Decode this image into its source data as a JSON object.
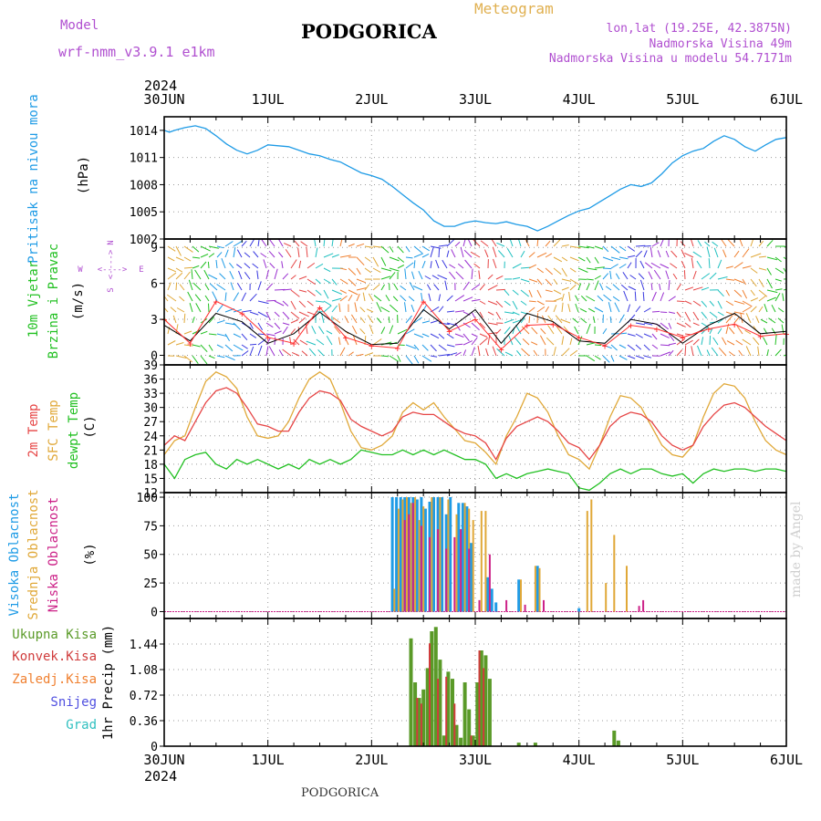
{
  "header": {
    "model_label": "Model",
    "model_name": "wrf-nmm_v3.9.1 e1km",
    "city": "PODGORICA",
    "meteogram_title": "Meteogram",
    "coords": "lon,lat (19.25E, 42.3875N)",
    "elevation": "Nadmorska Visina 49m",
    "elevation_model": "Nadmorska Visina u modelu 54.7171m",
    "footer_city": "PODGORICA",
    "watermark": "made by Angel"
  },
  "colors": {
    "pressure": "#1e9be6",
    "temp2m": "#e64545",
    "tsfc": "#e0a838",
    "dewpoint": "#22c022",
    "high_cloud": "#1e9be6",
    "mid_cloud": "#e0a838",
    "low_cloud": "#cc2288",
    "precip_total": "#5a9a28",
    "precip_conv": "#d03c3c",
    "precip_frz": "#f08030",
    "snow": "#5050e0",
    "graupel": "#30c0c0",
    "wind_speed": "#000000",
    "wind_gust": "#ff3030",
    "compass": "#b04fd0"
  },
  "x_axis": {
    "top_year": "2024",
    "bottom_year": "2024",
    "day_labels": [
      "30JUN",
      "1JUL",
      "2JUL",
      "3JUL",
      "4JUL",
      "5JUL",
      "6JUL"
    ]
  },
  "chart_data": [
    {
      "type": "line",
      "name": "pressure",
      "ylabel_left": "Pritisak na nivou mora",
      "ylabel_unit": "(hPa)",
      "ylim": [
        1002,
        1015.5
      ],
      "yticks": [
        "1014",
        "1011",
        "1008",
        "1005",
        "1002"
      ],
      "series": [
        {
          "x": [
            0,
            0.05,
            0.1,
            0.2,
            0.3,
            0.4,
            0.5,
            0.6,
            0.7,
            0.8,
            0.9,
            1.0,
            1.1,
            1.2,
            1.3,
            1.4,
            1.5,
            1.6,
            1.7,
            1.8,
            1.9,
            2.0,
            2.1,
            2.2,
            2.3,
            2.4,
            2.5,
            2.6,
            2.7,
            2.8,
            2.9,
            3.0,
            3.1,
            3.2,
            3.3,
            3.4,
            3.5,
            3.6,
            3.7,
            3.8,
            3.9,
            4.0,
            4.1,
            4.2,
            4.3,
            4.4,
            4.5,
            4.6,
            4.7,
            4.8,
            4.9,
            5.0,
            5.1,
            5.2,
            5.3,
            5.4,
            5.5,
            5.6,
            5.7,
            5.8,
            5.9,
            6.0
          ],
          "values": [
            1014.0,
            1013.8,
            1014.0,
            1014.3,
            1014.5,
            1014.2,
            1013.4,
            1012.5,
            1011.8,
            1011.4,
            1011.8,
            1012.4,
            1012.3,
            1012.2,
            1011.8,
            1011.4,
            1011.2,
            1010.8,
            1010.5,
            1009.9,
            1009.3,
            1009.0,
            1008.6,
            1007.8,
            1006.9,
            1006.0,
            1005.2,
            1004.0,
            1003.4,
            1003.4,
            1003.8,
            1004.0,
            1003.8,
            1003.7,
            1003.9,
            1003.6,
            1003.4,
            1002.9,
            1003.4,
            1004.0,
            1004.6,
            1005.1,
            1005.4,
            1006.1,
            1006.8,
            1007.5,
            1008.0,
            1007.8,
            1008.2,
            1009.2,
            1010.4,
            1011.2,
            1011.7,
            1012.0,
            1012.8,
            1013.4,
            1013.0,
            1012.2,
            1011.7,
            1012.4,
            1013.0,
            1013.2
          ]
        }
      ]
    },
    {
      "type": "line",
      "name": "wind",
      "ylabel_left_1": "10m Vjetar",
      "ylabel_left_2": "Brzina i Pravac",
      "ylabel_unit": "(m/s)",
      "compass_labels": [
        "W",
        "<---->",
        "E",
        "S",
        "<---->",
        "N"
      ],
      "ylim": [
        -0.8,
        9.7
      ],
      "yticks": [
        "9",
        "6",
        "3",
        "0"
      ],
      "series": [
        {
          "name": "speed",
          "x": [
            0,
            0.25,
            0.5,
            0.75,
            1.0,
            1.25,
            1.5,
            1.75,
            2.0,
            2.25,
            2.5,
            2.75,
            3.0,
            3.25,
            3.5,
            3.75,
            4.0,
            4.25,
            4.5,
            4.75,
            5.0,
            5.25,
            5.5,
            5.75,
            6.0
          ],
          "values": [
            2.5,
            1.2,
            3.5,
            2.8,
            1.0,
            1.8,
            3.6,
            2.0,
            0.9,
            1.0,
            3.8,
            2.2,
            3.8,
            1.0,
            3.5,
            2.8,
            1.2,
            1.0,
            3.0,
            2.6,
            1.0,
            2.5,
            3.5,
            1.8,
            2.0
          ]
        },
        {
          "name": "gust",
          "x": [
            0,
            0.25,
            0.5,
            0.75,
            1.0,
            1.25,
            1.5,
            1.75,
            2.0,
            2.25,
            2.5,
            2.75,
            3.0,
            3.25,
            3.5,
            3.75,
            4.0,
            4.25,
            4.5,
            4.75,
            5.0,
            5.25,
            5.5,
            5.75,
            6.0
          ],
          "values": [
            3.0,
            1.0,
            4.5,
            3.5,
            1.5,
            1.0,
            4.0,
            1.5,
            0.8,
            0.6,
            4.5,
            2.0,
            3.0,
            0.5,
            2.5,
            2.6,
            1.5,
            0.8,
            2.5,
            2.2,
            1.5,
            2.2,
            2.6,
            1.6,
            1.8
          ]
        }
      ]
    },
    {
      "type": "line",
      "name": "temperature",
      "ylabel_left_1": "2m Temp",
      "ylabel_left_2": "SFC Temp",
      "ylabel_left_3": "dewpt Temp",
      "ylabel_unit": "(C)",
      "ylim": [
        12,
        39
      ],
      "yticks": [
        "39",
        "36",
        "33",
        "30",
        "27",
        "24",
        "21",
        "18",
        "15",
        "12"
      ],
      "series": [
        {
          "name": "2m",
          "x": [
            0,
            0.1,
            0.2,
            0.3,
            0.4,
            0.5,
            0.6,
            0.7,
            0.8,
            0.9,
            1.0,
            1.1,
            1.2,
            1.3,
            1.4,
            1.5,
            1.6,
            1.7,
            1.8,
            1.9,
            2.0,
            2.1,
            2.2,
            2.3,
            2.4,
            2.5,
            2.6,
            2.7,
            2.8,
            2.9,
            3.0,
            3.1,
            3.2,
            3.3,
            3.4,
            3.5,
            3.6,
            3.7,
            3.8,
            3.9,
            4.0,
            4.1,
            4.2,
            4.3,
            4.4,
            4.5,
            4.6,
            4.7,
            4.8,
            4.9,
            5.0,
            5.1,
            5.2,
            5.3,
            5.4,
            5.5,
            5.6,
            5.7,
            5.8,
            5.9,
            6.0
          ],
          "values": [
            22,
            24,
            23,
            27,
            31,
            33.5,
            34.2,
            33,
            30,
            26.5,
            26,
            25,
            25,
            29,
            32,
            33.5,
            33,
            31.5,
            27.5,
            26,
            25,
            24,
            25,
            28,
            29,
            28.5,
            28.5,
            27,
            25.5,
            24.5,
            24,
            22.5,
            19,
            23.5,
            26,
            27,
            28,
            27,
            25,
            22.5,
            21.5,
            19,
            22,
            26,
            28,
            29,
            28.5,
            27,
            24,
            22,
            21,
            22,
            26,
            28.5,
            30.5,
            31,
            30,
            28,
            26,
            24.5,
            23
          ]
        },
        {
          "name": "sfc",
          "x": [
            0,
            0.1,
            0.2,
            0.3,
            0.4,
            0.5,
            0.6,
            0.7,
            0.8,
            0.9,
            1.0,
            1.1,
            1.2,
            1.3,
            1.4,
            1.5,
            1.6,
            1.7,
            1.8,
            1.9,
            2.0,
            2.1,
            2.2,
            2.3,
            2.4,
            2.5,
            2.6,
            2.7,
            2.8,
            2.9,
            3.0,
            3.1,
            3.2,
            3.3,
            3.4,
            3.5,
            3.6,
            3.7,
            3.8,
            3.9,
            4.0,
            4.1,
            4.2,
            4.3,
            4.4,
            4.5,
            4.6,
            4.7,
            4.8,
            4.9,
            5.0,
            5.1,
            5.2,
            5.3,
            5.4,
            5.5,
            5.6,
            5.7,
            5.8,
            5.9,
            6.0
          ],
          "values": [
            20,
            23,
            24,
            30,
            35.5,
            37.5,
            36.5,
            34,
            28,
            24,
            23.5,
            24,
            27,
            32,
            36,
            37.5,
            36,
            31,
            25,
            21.5,
            21,
            22,
            24,
            29,
            31,
            29.5,
            31,
            28,
            25.5,
            23,
            22.5,
            20.5,
            18,
            24,
            28,
            33,
            32,
            29,
            24,
            20,
            19,
            17,
            22,
            28,
            32.5,
            32,
            30,
            26,
            22,
            20,
            19.5,
            22,
            28,
            33,
            35,
            34.5,
            32,
            27,
            23,
            21,
            20
          ]
        },
        {
          "name": "dew",
          "x": [
            0,
            0.1,
            0.2,
            0.3,
            0.4,
            0.5,
            0.6,
            0.7,
            0.8,
            0.9,
            1.0,
            1.1,
            1.2,
            1.3,
            1.4,
            1.5,
            1.6,
            1.7,
            1.8,
            1.9,
            2.0,
            2.1,
            2.2,
            2.3,
            2.4,
            2.5,
            2.6,
            2.7,
            2.8,
            2.9,
            3.0,
            3.1,
            3.2,
            3.3,
            3.4,
            3.5,
            3.6,
            3.7,
            3.8,
            3.9,
            4.0,
            4.1,
            4.2,
            4.3,
            4.4,
            4.5,
            4.6,
            4.7,
            4.8,
            4.9,
            5.0,
            5.1,
            5.2,
            5.3,
            5.4,
            5.5,
            5.6,
            5.7,
            5.8,
            5.9,
            6.0
          ],
          "values": [
            18,
            15,
            19,
            20,
            20.5,
            18,
            17,
            19,
            18,
            19,
            18,
            17,
            18,
            17,
            19,
            18,
            19,
            18,
            19,
            21,
            20.5,
            20,
            20,
            21,
            20,
            21,
            20,
            21,
            20,
            19,
            19,
            18,
            15,
            16,
            15,
            16,
            16.5,
            17,
            16.5,
            16,
            13,
            12.5,
            14,
            16,
            17,
            16,
            17,
            17,
            16,
            15.5,
            16,
            14,
            16,
            17,
            16.5,
            17,
            17,
            16.5,
            17,
            17,
            16.5
          ]
        }
      ]
    },
    {
      "type": "bar",
      "name": "cloud",
      "ylabel_left_1": "Visoka Oblacnost",
      "ylabel_left_2": "Srednja Oblacnost",
      "ylabel_left_3": "Niska Oblacnost",
      "ylabel_unit": "(%)",
      "ylim": [
        -6,
        104
      ],
      "yticks": [
        "100",
        "75",
        "50",
        "25",
        "0"
      ],
      "series": [
        {
          "name": "high",
          "x": [
            2.2,
            2.24,
            2.28,
            2.32,
            2.36,
            2.4,
            2.44,
            2.48,
            2.52,
            2.56,
            2.6,
            2.64,
            2.68,
            2.72,
            2.76,
            2.84,
            2.88,
            2.92,
            2.96,
            3.12,
            3.16,
            3.2,
            3.42,
            3.6,
            4.0
          ],
          "values": [
            100,
            100,
            100,
            100,
            100,
            100,
            98,
            100,
            90,
            96,
            100,
            100,
            100,
            85,
            100,
            95,
            95,
            92,
            60,
            30,
            20,
            8,
            28,
            40,
            3
          ]
        },
        {
          "name": "mid",
          "x": [
            2.22,
            2.26,
            2.3,
            2.34,
            2.38,
            2.42,
            2.46,
            2.5,
            2.58,
            2.66,
            2.74,
            2.82,
            2.9,
            2.94,
            2.98,
            3.06,
            3.1,
            3.44,
            3.58,
            3.62,
            4.08,
            4.12,
            4.26,
            4.34,
            4.46
          ],
          "values": [
            20,
            90,
            98,
            100,
            95,
            100,
            80,
            92,
            100,
            100,
            98,
            85,
            95,
            90,
            80,
            88,
            88,
            28,
            40,
            38,
            88,
            98,
            25,
            67,
            40
          ]
        },
        {
          "name": "low",
          "x": [
            2.32,
            2.36,
            2.4,
            2.48,
            2.56,
            2.64,
            2.72,
            2.8,
            2.86,
            2.94,
            3.04,
            3.14,
            3.3,
            3.48,
            3.66,
            4.58,
            4.62
          ],
          "values": [
            80,
            85,
            95,
            75,
            65,
            72,
            55,
            65,
            72,
            55,
            10,
            50,
            10,
            6,
            10,
            5,
            10
          ]
        }
      ]
    },
    {
      "type": "bar",
      "name": "precip",
      "legend": [
        "Ukupna Kisa",
        "Konvek.Kisa",
        "Zaledj.Kisa",
        "Snijeg",
        "Grad"
      ],
      "ylabel": "1hr Precip (mm)",
      "ylim": [
        0,
        1.8
      ],
      "yticks": [
        "1.44",
        "1.08",
        "0.72",
        "0.36",
        "0"
      ],
      "series": [
        {
          "name": "total",
          "x": [
            2.38,
            2.42,
            2.46,
            2.5,
            2.54,
            2.58,
            2.62,
            2.66,
            2.7,
            2.74,
            2.78,
            2.82,
            2.86,
            2.9,
            2.94,
            2.98,
            3.02,
            3.06,
            3.1,
            3.14,
            3.42,
            3.58,
            4.34,
            4.38
          ],
          "values": [
            1.52,
            0.9,
            0.68,
            0.8,
            1.1,
            1.62,
            1.68,
            1.22,
            0.15,
            1.05,
            0.95,
            0.3,
            0.12,
            0.9,
            0.52,
            0.15,
            0.9,
            1.35,
            1.28,
            0.95,
            0.05,
            0.05,
            0.22,
            0.08
          ]
        },
        {
          "name": "conv",
          "x": [
            2.44,
            2.48,
            2.56,
            2.64,
            2.72,
            2.8,
            2.96,
            3.04,
            3.08
          ],
          "values": [
            0.68,
            0.6,
            1.45,
            0.95,
            0.98,
            0.6,
            0.15,
            1.35,
            1.1
          ]
        }
      ]
    }
  ]
}
